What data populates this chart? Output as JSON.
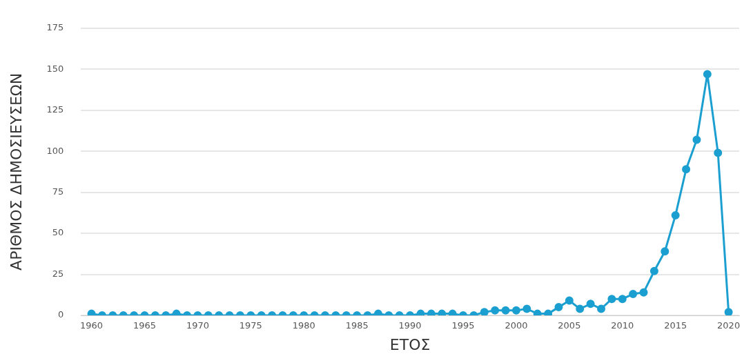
{
  "chart_data": {
    "type": "line",
    "xlabel": "ΕΤΟΣ",
    "ylabel": "ΑΡΙΘΜΟΣ ΔΗΜΟΣΙΕΥΣΕΩΝ",
    "x": [
      1960,
      1961,
      1962,
      1963,
      1964,
      1965,
      1966,
      1967,
      1968,
      1969,
      1970,
      1971,
      1972,
      1973,
      1974,
      1975,
      1976,
      1977,
      1978,
      1979,
      1980,
      1981,
      1982,
      1983,
      1984,
      1985,
      1986,
      1987,
      1988,
      1989,
      1990,
      1991,
      1992,
      1993,
      1994,
      1995,
      1996,
      1997,
      1998,
      1999,
      2000,
      2001,
      2002,
      2003,
      2004,
      2005,
      2006,
      2007,
      2008,
      2009,
      2010,
      2011,
      2012,
      2013,
      2014,
      2015,
      2016,
      2017,
      2018,
      2019,
      2020
    ],
    "series": [
      {
        "color": "#1b9fd0",
        "values": [
          1,
          0,
          0,
          0,
          0,
          0,
          0,
          0,
          1,
          0,
          0,
          0,
          0,
          0,
          0,
          0,
          0,
          0,
          0,
          0,
          0,
          0,
          0,
          0,
          0,
          0,
          0,
          1,
          0,
          0,
          0,
          1,
          1,
          1,
          1,
          0,
          0,
          2,
          3,
          3,
          3,
          4,
          1,
          1,
          5,
          9,
          4,
          7,
          4,
          10,
          10,
          13,
          14,
          27,
          39,
          61,
          89,
          107,
          147,
          99,
          2
        ]
      }
    ],
    "xlim": [
      1959,
      2021
    ],
    "xticks": [
      1960,
      1965,
      1970,
      1975,
      1980,
      1985,
      1990,
      1995,
      2000,
      2005,
      2010,
      2015,
      2020
    ],
    "ylim": [
      0,
      175
    ],
    "yticks": [
      0,
      25,
      50,
      75,
      100,
      125,
      150,
      175
    ],
    "grid": "y",
    "legend": false,
    "marker": "circle",
    "line_style": "solid"
  }
}
